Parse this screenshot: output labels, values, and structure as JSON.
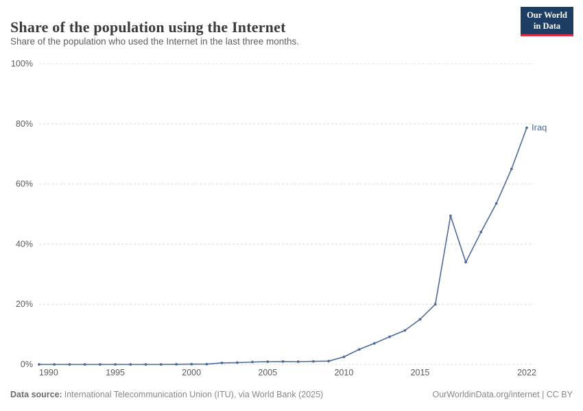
{
  "header": {
    "logo": {
      "line1": "Our World",
      "line2": "in Data",
      "bg_color": "#1d3d63",
      "accent_color": "#dc2e44"
    }
  },
  "chart_data": {
    "type": "line",
    "title": "Share of the population using the Internet",
    "subtitle": "Share of the population who used the Internet in the last three months.",
    "xlabel": "",
    "ylabel": "",
    "xlim": [
      1990,
      2022
    ],
    "ylim": [
      0,
      100
    ],
    "grid": "dashed-horizontal",
    "legend_position": "end-of-line",
    "yticks": [
      0,
      20,
      40,
      60,
      80,
      100
    ],
    "ytick_labels": [
      "0%",
      "20%",
      "40%",
      "60%",
      "80%",
      "100%"
    ],
    "xticks": [
      1990,
      1995,
      2000,
      2005,
      2010,
      2015,
      2022
    ],
    "line_color": "#4C6A9C",
    "tick_color": "#5b5b5b",
    "grid_color": "#dcdcdc",
    "series": [
      {
        "name": "Iraq",
        "x": [
          1990,
          1991,
          1992,
          1993,
          1994,
          1995,
          1996,
          1997,
          1998,
          1999,
          2000,
          2001,
          2002,
          2003,
          2004,
          2005,
          2006,
          2007,
          2008,
          2009,
          2010,
          2011,
          2012,
          2013,
          2014,
          2015,
          2016,
          2017,
          2018,
          2019,
          2020,
          2021,
          2022
        ],
        "values": [
          0,
          0,
          0,
          0,
          0,
          0,
          0,
          0,
          0,
          0.05,
          0.1,
          0.1,
          0.5,
          0.6,
          0.8,
          0.9,
          0.95,
          0.9,
          1.0,
          1.1,
          2.5,
          5,
          7,
          9.2,
          11.3,
          15,
          20,
          49.4,
          34,
          44,
          53.5,
          65,
          78.7
        ]
      }
    ]
  },
  "footer": {
    "source_label": "Data source:",
    "source_text": "International Telecommunication Union (ITU), via World Bank (2025)",
    "attribution": "OurWorldinData.org/internet | CC BY"
  }
}
